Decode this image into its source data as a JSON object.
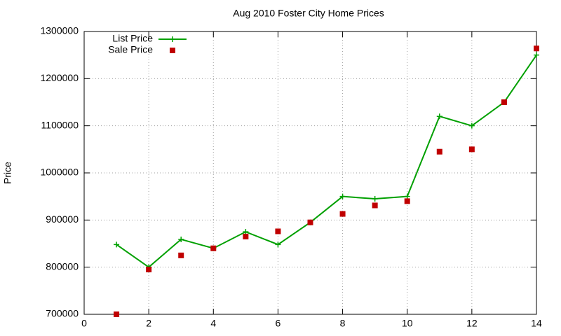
{
  "chart_data": {
    "type": "line",
    "title": "Aug 2010 Foster City Home Prices",
    "ylabel": "Price",
    "x": [
      1,
      2,
      3,
      4,
      5,
      6,
      7,
      8,
      9,
      10,
      11,
      12,
      13,
      14
    ],
    "series": [
      {
        "name": "List Price",
        "color": "#00a000",
        "style": "linespoints",
        "marker": "plus",
        "values": [
          848000,
          800000,
          859000,
          840000,
          875000,
          848000,
          895000,
          950000,
          945000,
          950000,
          1120000,
          1100000,
          1150000,
          1250000
        ]
      },
      {
        "name": "Sale Price",
        "color": "#c00000",
        "style": "points",
        "marker": "square",
        "values": [
          700000,
          795000,
          825000,
          840000,
          865000,
          876000,
          895000,
          913000,
          931000,
          940000,
          1045000,
          1050000,
          1150000,
          1264000
        ]
      }
    ],
    "xlim": [
      0,
      14
    ],
    "xticks": [
      0,
      2,
      4,
      6,
      8,
      10,
      12,
      14
    ],
    "ylim": [
      700000,
      1300000
    ],
    "yticks": [
      700000,
      800000,
      900000,
      1000000,
      1100000,
      1200000,
      1300000
    ],
    "grid": true,
    "legend": "top-left"
  }
}
